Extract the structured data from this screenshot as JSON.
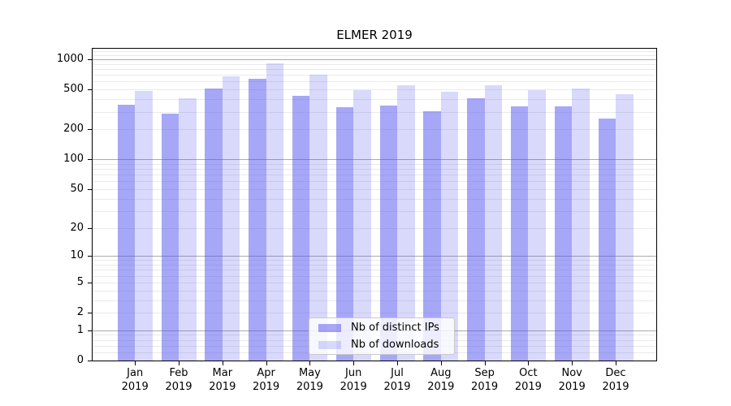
{
  "title": "ELMER 2019",
  "chart_data": {
    "type": "bar",
    "title": "ELMER 2019",
    "categories": [
      "Jan 2019",
      "Feb 2019",
      "Mar 2019",
      "Apr 2019",
      "May 2019",
      "Jun 2019",
      "Jul 2019",
      "Aug 2019",
      "Sep 2019",
      "Oct 2019",
      "Nov 2019",
      "Dec 2019"
    ],
    "series": [
      {
        "name": "Nb of distinct IPs",
        "color": "rgba(80,80,240,0.50)",
        "values": [
          349,
          288,
          515,
          643,
          432,
          335,
          345,
          305,
          405,
          340,
          340,
          256
        ]
      },
      {
        "name": "Nb of downloads",
        "color": "rgba(80,80,240,0.22)",
        "values": [
          483,
          405,
          676,
          911,
          705,
          495,
          555,
          470,
          555,
          495,
          515,
          448
        ]
      }
    ],
    "xlabel": "",
    "ylabel": "",
    "y_axis": {
      "scale": "log10(1+y)",
      "tick_values": [
        0,
        1,
        2,
        5,
        10,
        20,
        50,
        100,
        200,
        500,
        1000
      ],
      "tick_labels": [
        "0",
        "1",
        "2",
        "5",
        "10",
        "20",
        "50",
        "100",
        "200",
        "500",
        "1000"
      ],
      "major_grid_values": [
        1,
        10,
        100,
        1000
      ],
      "minor_grid_values": [
        0.2,
        0.4,
        0.6,
        0.8,
        2,
        3,
        4,
        5,
        6,
        7,
        8,
        9,
        20,
        30,
        40,
        50,
        60,
        70,
        80,
        90,
        200,
        300,
        400,
        500,
        600,
        700,
        800,
        900,
        1100,
        1200
      ],
      "ylim": [
        0,
        1273
      ]
    },
    "grid": "on",
    "legend_position": "lower center-right inside plot",
    "colors": {
      "major_grid": "#ababab",
      "minor_grid": "#eaeaea",
      "spine": "#000000"
    }
  }
}
